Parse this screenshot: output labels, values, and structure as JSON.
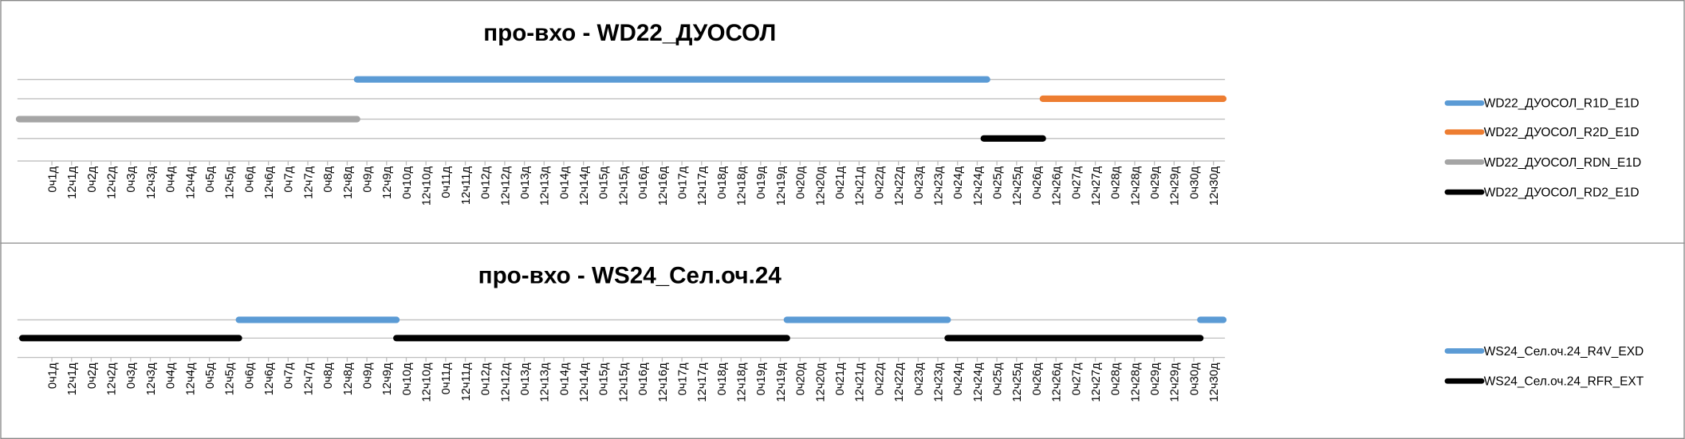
{
  "chart_data": [
    {
      "type": "gantt",
      "title": "про-вхо - WD22_ДУОСОЛ",
      "legend": "right",
      "xlim": [
        -21,
        715
      ],
      "xticks": [
        {
          "value": 0,
          "label": "0ч1д"
        },
        {
          "value": 12,
          "label": "12ч1д"
        },
        {
          "value": 24,
          "label": "0ч2д"
        },
        {
          "value": 36,
          "label": "12ч2д"
        },
        {
          "value": 48,
          "label": "0ч3д"
        },
        {
          "value": 60,
          "label": "12ч3д"
        },
        {
          "value": 72,
          "label": "0ч4д"
        },
        {
          "value": 84,
          "label": "12ч4д"
        },
        {
          "value": 96,
          "label": "0ч5д"
        },
        {
          "value": 108,
          "label": "12ч5д"
        },
        {
          "value": 120,
          "label": "0ч6д"
        },
        {
          "value": 132,
          "label": "12ч6д"
        },
        {
          "value": 144,
          "label": "0ч7д"
        },
        {
          "value": 156,
          "label": "12ч7д"
        },
        {
          "value": 168,
          "label": "0ч8д"
        },
        {
          "value": 180,
          "label": "12ч8д"
        },
        {
          "value": 192,
          "label": "0ч9д"
        },
        {
          "value": 204,
          "label": "12ч9д"
        },
        {
          "value": 216,
          "label": "0ч10д"
        },
        {
          "value": 228,
          "label": "12ч10д"
        },
        {
          "value": 240,
          "label": "0ч11д"
        },
        {
          "value": 252,
          "label": "12ч11д"
        },
        {
          "value": 264,
          "label": "0ч12д"
        },
        {
          "value": 276,
          "label": "12ч12д"
        },
        {
          "value": 288,
          "label": "0ч13д"
        },
        {
          "value": 300,
          "label": "12ч13д"
        },
        {
          "value": 312,
          "label": "0ч14д"
        },
        {
          "value": 324,
          "label": "12ч14д"
        },
        {
          "value": 336,
          "label": "0ч15д"
        },
        {
          "value": 348,
          "label": "12ч15д"
        },
        {
          "value": 360,
          "label": "0ч16д"
        },
        {
          "value": 372,
          "label": "12ч16д"
        },
        {
          "value": 384,
          "label": "0ч17д"
        },
        {
          "value": 396,
          "label": "12ч17д"
        },
        {
          "value": 408,
          "label": "0ч18д"
        },
        {
          "value": 420,
          "label": "12ч18д"
        },
        {
          "value": 432,
          "label": "0ч19д"
        },
        {
          "value": 444,
          "label": "12ч19д"
        },
        {
          "value": 456,
          "label": "0ч20д"
        },
        {
          "value": 468,
          "label": "12ч20д"
        },
        {
          "value": 480,
          "label": "0ч21д"
        },
        {
          "value": 492,
          "label": "12ч21д"
        },
        {
          "value": 504,
          "label": "0ч22д"
        },
        {
          "value": 516,
          "label": "12ч22д"
        },
        {
          "value": 528,
          "label": "0ч23д"
        },
        {
          "value": 540,
          "label": "12ч23д"
        },
        {
          "value": 552,
          "label": "0ч24д"
        },
        {
          "value": 564,
          "label": "12ч24д"
        },
        {
          "value": 576,
          "label": "0ч25д"
        },
        {
          "value": 588,
          "label": "12ч25д"
        },
        {
          "value": 600,
          "label": "0ч26д"
        },
        {
          "value": 612,
          "label": "12ч26д"
        },
        {
          "value": 624,
          "label": "0ч27д"
        },
        {
          "value": 636,
          "label": "12ч27д"
        },
        {
          "value": 648,
          "label": "0ч28д"
        },
        {
          "value": 660,
          "label": "12ч28д"
        },
        {
          "value": 672,
          "label": "0ч29д"
        },
        {
          "value": 684,
          "label": "12ч29д"
        },
        {
          "value": 696,
          "label": "0ч30д"
        },
        {
          "value": 708,
          "label": "12ч30д"
        }
      ],
      "series": [
        {
          "name": "WD22_ДУОСОЛ_R1D_E1D",
          "color": "#5b9bd5",
          "segments": [
            {
              "start": 186,
              "end": 570
            }
          ]
        },
        {
          "name": "WD22_ДУОСОЛ_R2D_E1D",
          "color": "#ed7d31",
          "segments": [
            {
              "start": 604,
              "end": 714
            }
          ]
        },
        {
          "name": "WD22_ДУОСОЛ_RDN_E1D",
          "color": "#a5a5a5",
          "segments": [
            {
              "start": -20,
              "end": 186
            }
          ]
        },
        {
          "name": "WD22_ДУОСОЛ_RD2_E1D",
          "color": "#000000",
          "segments": [
            {
              "start": 568,
              "end": 604
            }
          ]
        }
      ]
    },
    {
      "type": "gantt",
      "title": "про-вхо - WS24_Сел.оч.24",
      "legend": "right",
      "xlim": [
        -21,
        715
      ],
      "xticks": [
        {
          "value": 0,
          "label": "0ч1д"
        },
        {
          "value": 12,
          "label": "12ч1д"
        },
        {
          "value": 24,
          "label": "0ч2д"
        },
        {
          "value": 36,
          "label": "12ч2д"
        },
        {
          "value": 48,
          "label": "0ч3д"
        },
        {
          "value": 60,
          "label": "12ч3д"
        },
        {
          "value": 72,
          "label": "0ч4д"
        },
        {
          "value": 84,
          "label": "12ч4д"
        },
        {
          "value": 96,
          "label": "0ч5д"
        },
        {
          "value": 108,
          "label": "12ч5д"
        },
        {
          "value": 120,
          "label": "0ч6д"
        },
        {
          "value": 132,
          "label": "12ч6д"
        },
        {
          "value": 144,
          "label": "0ч7д"
        },
        {
          "value": 156,
          "label": "12ч7д"
        },
        {
          "value": 168,
          "label": "0ч8д"
        },
        {
          "value": 180,
          "label": "12ч8д"
        },
        {
          "value": 192,
          "label": "0ч9д"
        },
        {
          "value": 204,
          "label": "12ч9д"
        },
        {
          "value": 216,
          "label": "0ч10д"
        },
        {
          "value": 228,
          "label": "12ч10д"
        },
        {
          "value": 240,
          "label": "0ч11д"
        },
        {
          "value": 252,
          "label": "12ч11д"
        },
        {
          "value": 264,
          "label": "0ч12д"
        },
        {
          "value": 276,
          "label": "12ч12д"
        },
        {
          "value": 288,
          "label": "0ч13д"
        },
        {
          "value": 300,
          "label": "12ч13д"
        },
        {
          "value": 312,
          "label": "0ч14д"
        },
        {
          "value": 324,
          "label": "12ч14д"
        },
        {
          "value": 336,
          "label": "0ч15д"
        },
        {
          "value": 348,
          "label": "12ч15д"
        },
        {
          "value": 360,
          "label": "0ч16д"
        },
        {
          "value": 372,
          "label": "12ч16д"
        },
        {
          "value": 384,
          "label": "0ч17д"
        },
        {
          "value": 396,
          "label": "12ч17д"
        },
        {
          "value": 408,
          "label": "0ч18д"
        },
        {
          "value": 420,
          "label": "12ч18д"
        },
        {
          "value": 432,
          "label": "0ч19д"
        },
        {
          "value": 444,
          "label": "12ч19д"
        },
        {
          "value": 456,
          "label": "0ч20д"
        },
        {
          "value": 468,
          "label": "12ч20д"
        },
        {
          "value": 480,
          "label": "0ч21д"
        },
        {
          "value": 492,
          "label": "12ч21д"
        },
        {
          "value": 504,
          "label": "0ч22д"
        },
        {
          "value": 516,
          "label": "12ч22д"
        },
        {
          "value": 528,
          "label": "0ч23д"
        },
        {
          "value": 540,
          "label": "12ч23д"
        },
        {
          "value": 552,
          "label": "0ч24д"
        },
        {
          "value": 564,
          "label": "12ч24д"
        },
        {
          "value": 576,
          "label": "0ч25д"
        },
        {
          "value": 588,
          "label": "12ч25д"
        },
        {
          "value": 600,
          "label": "0ч26д"
        },
        {
          "value": 612,
          "label": "12ч26д"
        },
        {
          "value": 624,
          "label": "0ч27д"
        },
        {
          "value": 636,
          "label": "12ч27д"
        },
        {
          "value": 648,
          "label": "0ч28д"
        },
        {
          "value": 660,
          "label": "12ч28д"
        },
        {
          "value": 672,
          "label": "0ч29д"
        },
        {
          "value": 684,
          "label": "12ч29д"
        },
        {
          "value": 696,
          "label": "0ч30д"
        },
        {
          "value": 708,
          "label": "12ч30д"
        }
      ],
      "series": [
        {
          "name": "WS24_Сел.оч.24_R4V_EXD",
          "color": "#5b9bd5",
          "segments": [
            {
              "start": 114,
              "end": 210
            },
            {
              "start": 448,
              "end": 546
            },
            {
              "start": 700,
              "end": 714
            }
          ]
        },
        {
          "name": "WS24_Сел.оч.24_RFR_EXT",
          "color": "#000000",
          "segments": [
            {
              "start": -18,
              "end": 114
            },
            {
              "start": 210,
              "end": 448
            },
            {
              "start": 546,
              "end": 700
            }
          ]
        }
      ]
    }
  ]
}
